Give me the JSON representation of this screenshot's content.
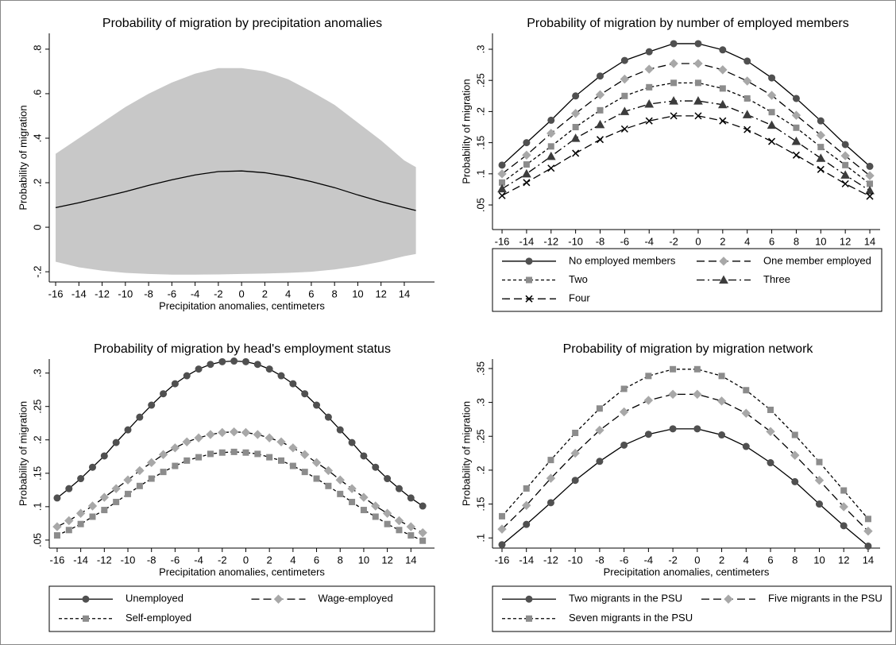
{
  "chart_data": [
    {
      "type": "line",
      "title": "Probability of migration by precipitation anomalies",
      "x_label": "Precipitation anomalies, centimeters",
      "y_label": "Probability of migration",
      "x": [
        -16,
        -14,
        -12,
        -10,
        -8,
        -6,
        -4,
        -2,
        0,
        2,
        4,
        6,
        8,
        10,
        12,
        14,
        15
      ],
      "band": {
        "color": "#c8c8c8",
        "upper": [
          0.33,
          0.4,
          0.47,
          0.54,
          0.6,
          0.65,
          0.69,
          0.715,
          0.715,
          0.7,
          0.665,
          0.61,
          0.55,
          0.47,
          0.39,
          0.3,
          0.27
        ],
        "lower": [
          -0.155,
          -0.18,
          -0.195,
          -0.205,
          -0.21,
          -0.213,
          -0.213,
          -0.212,
          -0.21,
          -0.208,
          -0.205,
          -0.2,
          -0.19,
          -0.175,
          -0.155,
          -0.13,
          -0.12
        ]
      },
      "series": [
        {
          "color": "#000000",
          "marker": "none",
          "dash": "solid",
          "values": [
            0.088,
            0.11,
            0.135,
            0.16,
            0.188,
            0.213,
            0.235,
            0.25,
            0.253,
            0.245,
            0.228,
            0.205,
            0.178,
            0.145,
            0.115,
            0.088,
            0.075
          ]
        }
      ],
      "xlim": [
        -16.55,
        16.6
      ],
      "ylim": [
        -0.246,
        0.871
      ],
      "xticks": [
        -16,
        -14,
        -12,
        -10,
        -8,
        -6,
        -4,
        -2,
        0,
        2,
        4,
        6,
        8,
        10,
        12,
        14
      ],
      "yticks": [
        {
          "value": -0.2,
          "label": "-.2"
        },
        0,
        {
          "value": 0.2,
          "label": ".2"
        },
        {
          "value": 0.4,
          "label": ".4"
        },
        {
          "value": 0.6,
          "label": ".6"
        },
        {
          "value": 0.8,
          "label": ".8"
        }
      ],
      "line_color": "#000000"
    },
    {
      "type": "line",
      "title": "Probability of migration by number of employed members",
      "x_label": "Precipitation anomalies, centimeters",
      "y_label": "Probability of migration",
      "x": [
        -16,
        -14,
        -12,
        -10,
        -8,
        -6,
        -4,
        -2,
        0,
        2,
        4,
        6,
        8,
        10,
        12,
        14
      ],
      "series": [
        {
          "name": "No employed members",
          "color": "#505050",
          "marker": "circle",
          "dash": "solid",
          "values": [
            0.114,
            0.15,
            0.186,
            0.225,
            0.257,
            0.282,
            0.296,
            0.309,
            0.309,
            0.299,
            0.281,
            0.254,
            0.221,
            0.185,
            0.147,
            0.112
          ]
        },
        {
          "name": "One member employed",
          "color": "#a8a8a8",
          "marker": "diamond",
          "dash": "longdash",
          "values": [
            0.1,
            0.13,
            0.165,
            0.197,
            0.227,
            0.252,
            0.268,
            0.277,
            0.277,
            0.267,
            0.249,
            0.226,
            0.194,
            0.162,
            0.129,
            0.097
          ]
        },
        {
          "name": "Two",
          "color": "#8c8c8c",
          "marker": "square",
          "dash": "shortdash",
          "values": [
            0.086,
            0.115,
            0.144,
            0.175,
            0.202,
            0.225,
            0.239,
            0.246,
            0.246,
            0.237,
            0.221,
            0.199,
            0.174,
            0.143,
            0.114,
            0.084
          ]
        },
        {
          "name": "Three",
          "color": "#3c3c3c",
          "marker": "triangle",
          "dash": "dashdot",
          "values": [
            0.076,
            0.1,
            0.128,
            0.157,
            0.179,
            0.2,
            0.212,
            0.217,
            0.217,
            0.211,
            0.195,
            0.178,
            0.152,
            0.125,
            0.098,
            0.073
          ]
        },
        {
          "name": "Four",
          "color": "#000000",
          "marker": "x",
          "dash": "longdash",
          "values": [
            0.065,
            0.086,
            0.109,
            0.133,
            0.155,
            0.172,
            0.185,
            0.193,
            0.193,
            0.185,
            0.171,
            0.152,
            0.13,
            0.107,
            0.084,
            0.064
          ]
        }
      ],
      "xlim": [
        -16.78,
        14.84
      ],
      "ylim": [
        0.0105,
        0.3255
      ],
      "xticks": [
        -16,
        -14,
        -12,
        -10,
        -8,
        -6,
        -4,
        -2,
        0,
        2,
        4,
        6,
        8,
        10,
        12,
        14
      ],
      "yticks": [
        {
          "value": 0.05,
          "label": ".05"
        },
        {
          "value": 0.1,
          "label": ".1"
        },
        {
          "value": 0.15,
          "label": ".15"
        },
        {
          "value": 0.2,
          "label": ".2"
        },
        {
          "value": 0.25,
          "label": ".25"
        },
        {
          "value": 0.3,
          "label": ".3"
        }
      ],
      "legend": {
        "position": "bottom",
        "columns": 2
      },
      "line_color": "#000000"
    },
    {
      "type": "line",
      "title": "Probability of migration by head's employment status",
      "x_label": "Precipitation anomalies, centimeters",
      "y_label": "Probability of migration",
      "x": [
        -16,
        -15,
        -14,
        -13,
        -12,
        -11,
        -10,
        -9,
        -8,
        -7,
        -6,
        -5,
        -4,
        -3,
        -2,
        -1,
        0,
        1,
        2,
        3,
        4,
        5,
        6,
        7,
        8,
        9,
        10,
        11,
        12,
        13,
        14,
        15
      ],
      "series": [
        {
          "name": "Unemployed",
          "color": "#505050",
          "marker": "circle",
          "dash": "solid",
          "values": [
            0.113,
            0.127,
            0.142,
            0.159,
            0.176,
            0.196,
            0.215,
            0.234,
            0.252,
            0.269,
            0.284,
            0.296,
            0.306,
            0.313,
            0.317,
            0.318,
            0.317,
            0.313,
            0.306,
            0.296,
            0.284,
            0.269,
            0.252,
            0.234,
            0.215,
            0.196,
            0.176,
            0.159,
            0.142,
            0.127,
            0.113,
            0.101
          ]
        },
        {
          "name": "Wage-employed",
          "color": "#a8a8a8",
          "marker": "diamond",
          "dash": "longdash",
          "values": [
            0.07,
            0.079,
            0.09,
            0.101,
            0.114,
            0.127,
            0.14,
            0.154,
            0.166,
            0.178,
            0.188,
            0.197,
            0.203,
            0.208,
            0.211,
            0.212,
            0.211,
            0.208,
            0.203,
            0.197,
            0.188,
            0.178,
            0.166,
            0.154,
            0.14,
            0.127,
            0.114,
            0.101,
            0.09,
            0.079,
            0.07,
            0.061
          ]
        },
        {
          "name": "Self-employed",
          "color": "#8c8c8c",
          "marker": "square",
          "dash": "shortdash",
          "values": [
            0.057,
            0.065,
            0.074,
            0.085,
            0.095,
            0.107,
            0.119,
            0.131,
            0.142,
            0.152,
            0.161,
            0.169,
            0.174,
            0.179,
            0.181,
            0.182,
            0.181,
            0.179,
            0.174,
            0.169,
            0.161,
            0.152,
            0.142,
            0.131,
            0.119,
            0.107,
            0.095,
            0.085,
            0.074,
            0.065,
            0.057,
            0.049
          ]
        }
      ],
      "xlim": [
        -16.67,
        16.0
      ],
      "ylim": [
        0.038,
        0.321
      ],
      "xticks": [
        -16,
        -14,
        -12,
        -10,
        -8,
        -6,
        -4,
        -2,
        0,
        2,
        4,
        6,
        8,
        10,
        12,
        14
      ],
      "yticks": [
        {
          "value": 0.05,
          "label": ".05"
        },
        {
          "value": 0.1,
          "label": ".1"
        },
        {
          "value": 0.15,
          "label": ".15"
        },
        {
          "value": 0.2,
          "label": ".2"
        },
        {
          "value": 0.25,
          "label": ".25"
        },
        {
          "value": 0.3,
          "label": ".3"
        }
      ],
      "legend": {
        "position": "bottom",
        "columns": 2
      },
      "line_color": "#000000"
    },
    {
      "type": "line",
      "title": "Probability of migration by migration network",
      "x_label": "Precipitation anomalies, centimeters",
      "y_label": "Probability of migration",
      "x": [
        -16,
        -14,
        -12,
        -10,
        -8,
        -6,
        -4,
        -2,
        0,
        2,
        4,
        6,
        8,
        10,
        12,
        14
      ],
      "series": [
        {
          "name": "Two migrants in the PSU",
          "color": "#505050",
          "marker": "circle",
          "dash": "solid",
          "values": [
            0.09,
            0.12,
            0.152,
            0.185,
            0.213,
            0.237,
            0.253,
            0.261,
            0.261,
            0.252,
            0.235,
            0.211,
            0.183,
            0.15,
            0.118,
            0.088
          ]
        },
        {
          "name": "Five migrants in the PSU",
          "color": "#a8a8a8",
          "marker": "diamond",
          "dash": "longdash",
          "values": [
            0.113,
            0.148,
            0.188,
            0.225,
            0.259,
            0.286,
            0.303,
            0.312,
            0.312,
            0.302,
            0.284,
            0.257,
            0.222,
            0.185,
            0.146,
            0.11
          ]
        },
        {
          "name": "Seven migrants in the PSU",
          "color": "#8c8c8c",
          "marker": "square",
          "dash": "shortdash",
          "values": [
            0.132,
            0.173,
            0.215,
            0.255,
            0.291,
            0.32,
            0.339,
            0.349,
            0.349,
            0.339,
            0.318,
            0.289,
            0.252,
            0.212,
            0.17,
            0.128
          ]
        }
      ],
      "xlim": [
        -16.78,
        14.98
      ],
      "ylim": [
        0.085,
        0.364
      ],
      "xticks": [
        -16,
        -14,
        -12,
        -10,
        -8,
        -6,
        -4,
        -2,
        0,
        2,
        4,
        6,
        8,
        10,
        12,
        14
      ],
      "yticks": [
        {
          "value": 0.1,
          "label": ".1"
        },
        {
          "value": 0.15,
          "label": ".15"
        },
        {
          "value": 0.2,
          "label": ".2"
        },
        {
          "value": 0.25,
          "label": ".25"
        },
        {
          "value": 0.3,
          "label": ".3"
        },
        {
          "value": 0.35,
          "label": ".35"
        }
      ],
      "legend": {
        "position": "bottom",
        "columns": 2
      },
      "line_color": "#000000"
    }
  ]
}
